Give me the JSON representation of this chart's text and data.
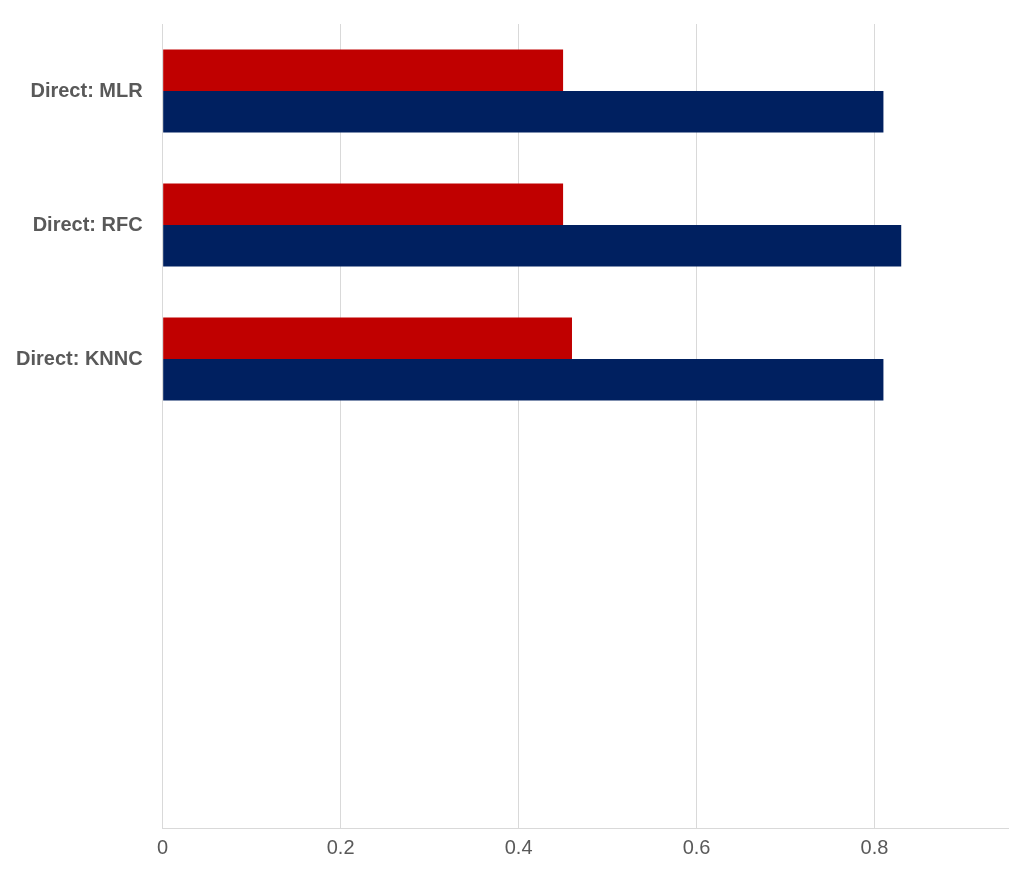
{
  "chart_data": {
    "type": "bar",
    "orientation": "horizontal",
    "categories": [
      "Direct: MLR",
      "Direct: RFC",
      "Direct: KNNC",
      null,
      null,
      null
    ],
    "series": [
      {
        "color": "#c00000",
        "values": [
          0.45,
          0.45,
          0.46,
          null,
          null,
          null
        ]
      },
      {
        "color": "#002060",
        "values": [
          0.81,
          0.83,
          0.81,
          null,
          null,
          null
        ]
      }
    ],
    "xlim": [
      0,
      0.95
    ],
    "xticks": [
      0,
      0.2,
      0.4,
      0.6,
      0.8
    ],
    "grid": "x",
    "legend": false
  }
}
